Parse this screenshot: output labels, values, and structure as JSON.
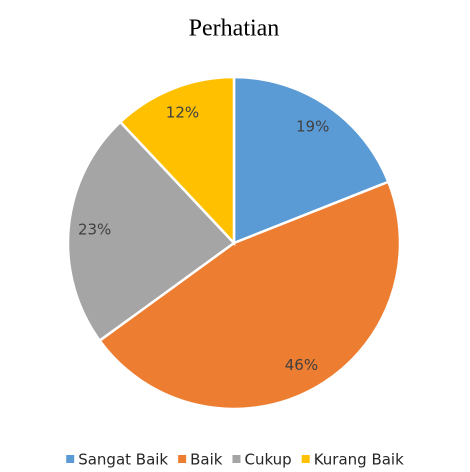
{
  "chart_data": {
    "type": "pie",
    "title": "Perhatian",
    "categories": [
      "Sangat Baik",
      "Baik",
      "Cukup",
      "Kurang Baik"
    ],
    "values": [
      19,
      46,
      23,
      12
    ],
    "value_labels": [
      "19%",
      "46%",
      "23%",
      "12%"
    ],
    "colors": [
      "#5b9bd5",
      "#ed7d31",
      "#a5a5a5",
      "#ffc000"
    ],
    "legend": "bottom"
  }
}
